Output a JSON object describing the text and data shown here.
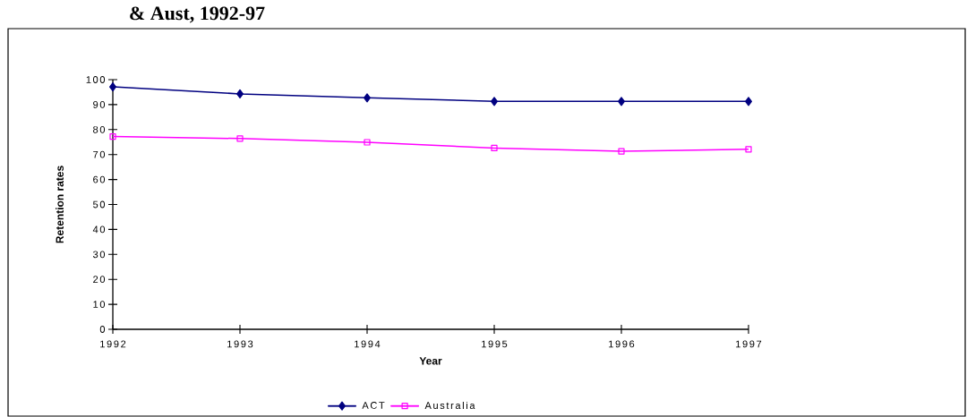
{
  "chart_data": {
    "type": "line",
    "title": "& Aust, 1992-97",
    "xlabel": "Year",
    "ylabel": "Retention rates",
    "categories": [
      "1992",
      "1993",
      "1994",
      "1995",
      "1996",
      "1997"
    ],
    "series": [
      {
        "name": "ACT",
        "color": "#000080",
        "marker": "diamond",
        "values": [
          97.1,
          94.3,
          92.7,
          91.3,
          91.3,
          91.3
        ]
      },
      {
        "name": "Australia",
        "color": "#ff00ff",
        "marker": "square",
        "values": [
          77.2,
          76.4,
          74.9,
          72.6,
          71.3,
          72.1
        ]
      }
    ],
    "ylim": [
      0,
      100
    ],
    "yticks": [
      0,
      10,
      20,
      30,
      40,
      50,
      60,
      70,
      80,
      90,
      100
    ],
    "grid": false,
    "legend": "bottom",
    "line_style": "solid"
  }
}
